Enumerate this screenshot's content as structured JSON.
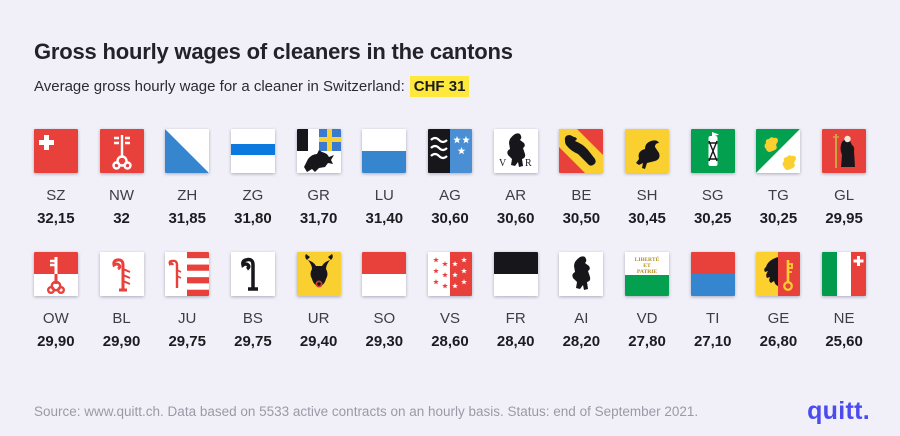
{
  "header": {
    "title": "Gross hourly wages of cleaners in the cantons",
    "subtitle_prefix": "Average gross hourly wage for a cleaner in Switzerland:",
    "subtitle_highlight": "CHF 31"
  },
  "footer": {
    "source": "Source: www.quitt.ch. Data based on 5533 active contracts on an hourly basis. Status: end of September 2021.",
    "brand": "quitt."
  },
  "colors": {
    "background": "#f1f0f9",
    "highlight": "#fde83b",
    "brand": "#4b4bef",
    "flag_red": "#e8413c",
    "flag_blue": "#3585cf",
    "flag_yellow": "#f9d030",
    "flag_green": "#02a04f"
  },
  "rows": [
    {
      "cells": [
        {
          "code": "SZ",
          "value": "32,15",
          "flag_icon": "flag-sz"
        },
        {
          "code": "NW",
          "value": "32",
          "flag_icon": "flag-nw"
        },
        {
          "code": "ZH",
          "value": "31,85",
          "flag_icon": "flag-zh"
        },
        {
          "code": "ZG",
          "value": "31,80",
          "flag_icon": "flag-zg"
        },
        {
          "code": "GR",
          "value": "31,70",
          "flag_icon": "flag-gr"
        },
        {
          "code": "LU",
          "value": "31,40",
          "flag_icon": "flag-lu"
        },
        {
          "code": "AG",
          "value": "30,60",
          "flag_icon": "flag-ag"
        },
        {
          "code": "AR",
          "value": "30,60",
          "flag_icon": "flag-ar"
        },
        {
          "code": "BE",
          "value": "30,50",
          "flag_icon": "flag-be"
        },
        {
          "code": "SH",
          "value": "30,45",
          "flag_icon": "flag-sh"
        },
        {
          "code": "SG",
          "value": "30,25",
          "flag_icon": "flag-sg"
        },
        {
          "code": "TG",
          "value": "30,25",
          "flag_icon": "flag-tg"
        },
        {
          "code": "GL",
          "value": "29,95",
          "flag_icon": "flag-gl"
        }
      ]
    },
    {
      "cells": [
        {
          "code": "OW",
          "value": "29,90",
          "flag_icon": "flag-ow"
        },
        {
          "code": "BL",
          "value": "29,90",
          "flag_icon": "flag-bl"
        },
        {
          "code": "JU",
          "value": "29,75",
          "flag_icon": "flag-ju"
        },
        {
          "code": "BS",
          "value": "29,75",
          "flag_icon": "flag-bs"
        },
        {
          "code": "UR",
          "value": "29,40",
          "flag_icon": "flag-ur"
        },
        {
          "code": "SO",
          "value": "29,30",
          "flag_icon": "flag-so"
        },
        {
          "code": "VS",
          "value": "28,60",
          "flag_icon": "flag-vs"
        },
        {
          "code": "FR",
          "value": "28,40",
          "flag_icon": "flag-fr"
        },
        {
          "code": "AI",
          "value": "28,20",
          "flag_icon": "flag-ai"
        },
        {
          "code": "VD",
          "value": "27,80",
          "flag_icon": "flag-vd"
        },
        {
          "code": "TI",
          "value": "27,10",
          "flag_icon": "flag-ti"
        },
        {
          "code": "GE",
          "value": "26,80",
          "flag_icon": "flag-ge"
        },
        {
          "code": "NE",
          "value": "25,60",
          "flag_icon": "flag-ne"
        }
      ]
    }
  ],
  "chart_data": {
    "type": "table",
    "title": "Gross hourly wages of cleaners in the cantons",
    "subtitle": "Average gross hourly wage for a cleaner in Switzerland: CHF 31",
    "unit": "CHF per hour",
    "average": 31,
    "categories": [
      "SZ",
      "NW",
      "ZH",
      "ZG",
      "GR",
      "LU",
      "AG",
      "AR",
      "BE",
      "SH",
      "SG",
      "TG",
      "GL",
      "OW",
      "BL",
      "JU",
      "BS",
      "UR",
      "SO",
      "VS",
      "FR",
      "AI",
      "VD",
      "TI",
      "GE",
      "NE"
    ],
    "values": [
      32.15,
      32,
      31.85,
      31.8,
      31.7,
      31.4,
      30.6,
      30.6,
      30.5,
      30.45,
      30.25,
      30.25,
      29.95,
      29.9,
      29.9,
      29.75,
      29.75,
      29.4,
      29.3,
      28.6,
      28.4,
      28.2,
      27.8,
      27.1,
      26.8,
      25.6
    ],
    "value_labels": [
      "32,15",
      "32",
      "31,85",
      "31,80",
      "31,70",
      "31,40",
      "30,60",
      "30,60",
      "30,50",
      "30,45",
      "30,25",
      "30,25",
      "29,95",
      "29,90",
      "29,90",
      "29,75",
      "29,75",
      "29,40",
      "29,30",
      "28,60",
      "28,40",
      "28,20",
      "27,80",
      "27,10",
      "26,80",
      "25,60"
    ],
    "note": "Source: www.quitt.ch. Data based on 5533 active contracts on an hourly basis. Status: end of September 2021.",
    "layout": "two rows of 13 canton flag tiles, sorted descending by wage"
  }
}
